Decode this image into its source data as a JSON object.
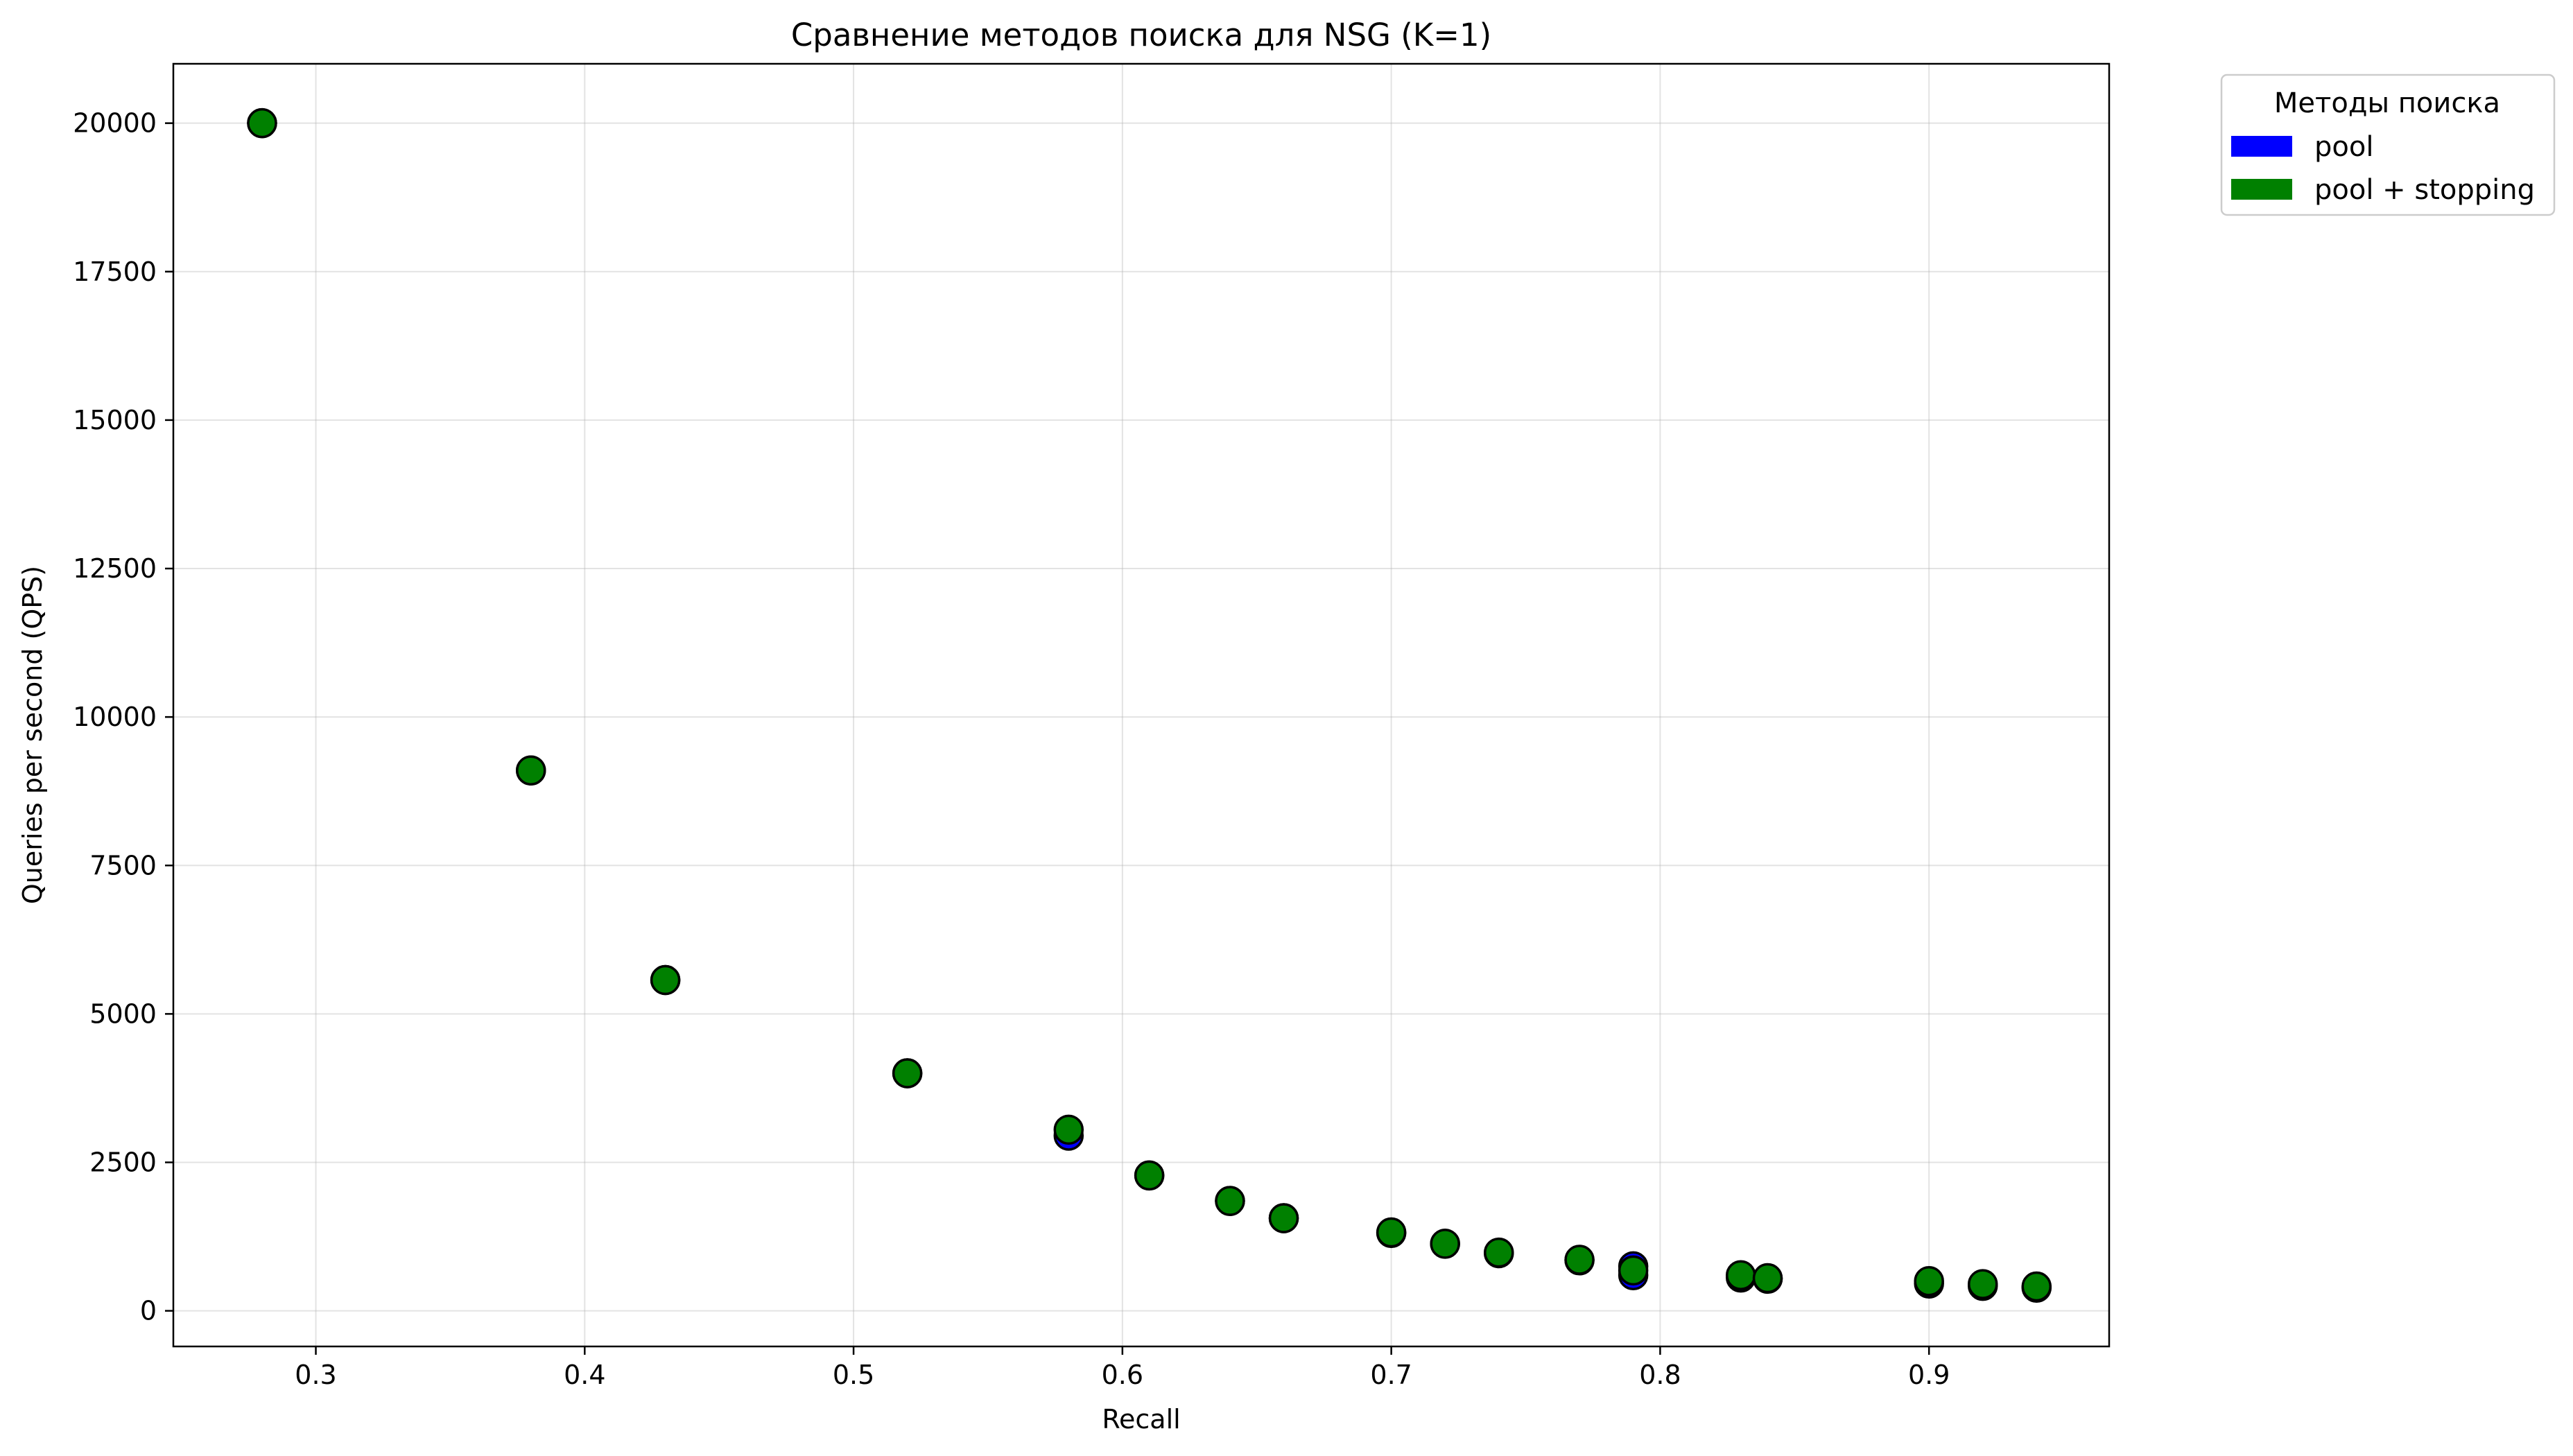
{
  "chart_data": {
    "type": "scatter",
    "title": "Сравнение методов поиска для NSG (K=1)",
    "xlabel": "Recall",
    "ylabel": "Queries per second (QPS)",
    "xlim": [
      0.247,
      0.967
    ],
    "ylim": [
      -600,
      21000
    ],
    "xticks": [
      0.3,
      0.4,
      0.5,
      0.6,
      0.7,
      0.8,
      0.9
    ],
    "xtick_labels": [
      "0.3",
      "0.4",
      "0.5",
      "0.6",
      "0.7",
      "0.8",
      "0.9"
    ],
    "yticks": [
      0,
      2500,
      5000,
      7500,
      10000,
      12500,
      15000,
      17500,
      20000
    ],
    "ytick_labels": [
      "0",
      "2500",
      "5000",
      "7500",
      "10000",
      "12500",
      "15000",
      "17500",
      "20000"
    ],
    "grid": true,
    "legend": {
      "title": "Методы поиска",
      "placement": "outside-top-right"
    },
    "series": [
      {
        "name": "pool",
        "color": "#0000ff",
        "points": [
          [
            0.28,
            20000
          ],
          [
            0.38,
            9100
          ],
          [
            0.43,
            5570
          ],
          [
            0.52,
            4000
          ],
          [
            0.58,
            2950
          ],
          [
            0.61,
            2280
          ],
          [
            0.64,
            1850
          ],
          [
            0.66,
            1560
          ],
          [
            0.7,
            1310
          ],
          [
            0.72,
            1130
          ],
          [
            0.74,
            970
          ],
          [
            0.77,
            850
          ],
          [
            0.79,
            600
          ],
          [
            0.79,
            750
          ],
          [
            0.83,
            560
          ],
          [
            0.84,
            540
          ],
          [
            0.9,
            460
          ],
          [
            0.92,
            420
          ],
          [
            0.94,
            390
          ]
        ]
      },
      {
        "name": "pool + stopping",
        "color": "#008000",
        "points": [
          [
            0.28,
            20000
          ],
          [
            0.38,
            9100
          ],
          [
            0.43,
            5570
          ],
          [
            0.52,
            4000
          ],
          [
            0.58,
            3050
          ],
          [
            0.61,
            2280
          ],
          [
            0.64,
            1850
          ],
          [
            0.66,
            1560
          ],
          [
            0.7,
            1320
          ],
          [
            0.72,
            1130
          ],
          [
            0.74,
            980
          ],
          [
            0.77,
            860
          ],
          [
            0.79,
            680
          ],
          [
            0.83,
            600
          ],
          [
            0.84,
            550
          ],
          [
            0.9,
            500
          ],
          [
            0.92,
            450
          ],
          [
            0.94,
            410
          ]
        ]
      }
    ]
  }
}
